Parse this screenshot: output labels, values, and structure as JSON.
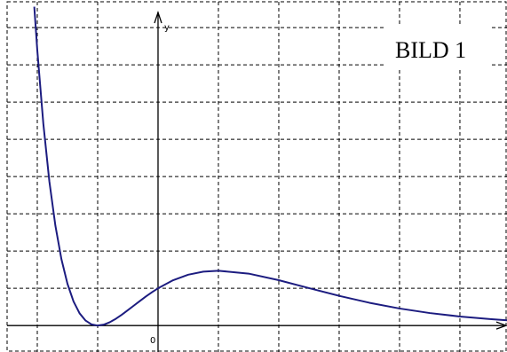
{
  "chart_data": {
    "type": "line",
    "title": "BILD 1",
    "y_label": "y",
    "x": [
      -2.05,
      -2.0,
      -1.9,
      -1.8,
      -1.7,
      -1.6,
      -1.5,
      -1.4,
      -1.3,
      -1.2,
      -1.1,
      -1.0,
      -0.9,
      -0.8,
      -0.7,
      -0.6,
      -0.5,
      -0.4,
      -0.3,
      -0.2,
      -0.1,
      0,
      0.25,
      0.5,
      0.75,
      1,
      1.5,
      2,
      2.5,
      3,
      3.5,
      4,
      4.5,
      5,
      5.5,
      5.8
    ],
    "series": [
      {
        "color": "#1c1c80",
        "values": [
          8.56,
          7.39,
          5.42,
          3.87,
          2.68,
          1.78,
          1.12,
          0.649,
          0.33,
          0.133,
          0.03,
          0,
          0.0246,
          0.089,
          0.181,
          0.292,
          0.412,
          0.537,
          0.661,
          0.782,
          0.895,
          1,
          1.217,
          1.365,
          1.447,
          1.472,
          1.395,
          1.218,
          1.006,
          0.797,
          0.612,
          0.458,
          0.336,
          0.243,
          0.173,
          0.14
        ]
      }
    ],
    "xlim": [
      -2.5,
      5.78
    ],
    "ylim": [
      -0.71,
      8.74
    ],
    "x_grid": [
      -2,
      -1,
      1,
      2,
      3,
      4,
      5
    ],
    "y_grid": [
      1,
      2,
      3,
      4,
      5,
      6,
      7,
      8
    ],
    "xticks": [
      0
    ],
    "grid": true
  }
}
